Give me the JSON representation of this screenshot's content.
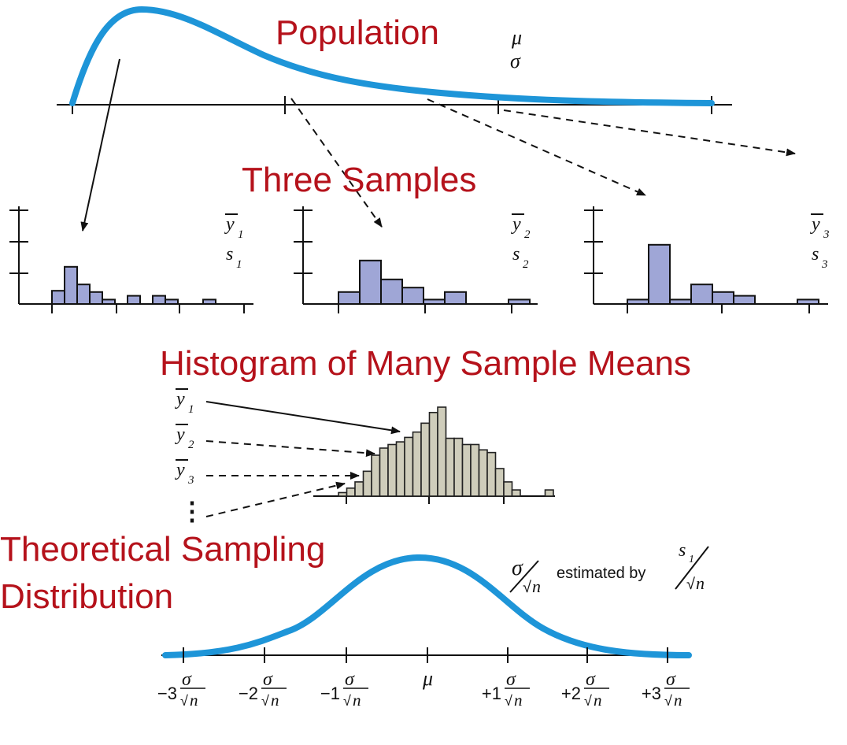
{
  "titles": {
    "population": "Population",
    "samples": "Three Samples",
    "histogram": "Histogram of Many Sample Means",
    "theoretical_line1": "Theoretical Sampling",
    "theoretical_line2": "Distribution"
  },
  "population_params": {
    "mu": "μ",
    "sigma": "σ"
  },
  "samples": [
    {
      "mean_symbol": "y",
      "sd_symbol": "s",
      "index": "1",
      "bars": [
        0.42,
        1.18,
        0.62,
        0.38,
        0.14,
        0.0,
        0.26,
        0.0,
        0.26,
        0.14,
        0.0,
        0.0,
        0.14
      ]
    },
    {
      "mean_symbol": "y",
      "sd_symbol": "s",
      "index": "2",
      "bars": [
        0.38,
        1.38,
        0.78,
        0.52,
        0.14,
        0.38,
        0.0,
        0.0,
        0.14
      ]
    },
    {
      "mean_symbol": "y",
      "sd_symbol": "s",
      "index": "3",
      "bars": [
        0.14,
        1.88,
        0.14,
        0.62,
        0.38,
        0.26,
        0.0,
        0.0,
        0.14
      ]
    }
  ],
  "means_list": [
    {
      "symbol": "y",
      "index": "1"
    },
    {
      "symbol": "y",
      "index": "2"
    },
    {
      "symbol": "y",
      "index": "3"
    }
  ],
  "means_histogram": [
    0.04,
    0.09,
    0.16,
    0.28,
    0.46,
    0.54,
    0.58,
    0.61,
    0.66,
    0.72,
    0.82,
    0.94,
    1.0,
    0.65,
    0.65,
    0.58,
    0.58,
    0.52,
    0.49,
    0.31,
    0.16,
    0.07,
    0.0,
    0.0,
    0.0,
    0.07
  ],
  "ellipsis": "⋮",
  "estimate_label": {
    "numerator": "σ",
    "denominator": "n",
    "text": "estimated by",
    "s_symbol": "s",
    "s_index": "1"
  },
  "axis_ticks": [
    {
      "coef": "−3",
      "symbol": "σ",
      "denom": "n"
    },
    {
      "coef": "−2",
      "symbol": "σ",
      "denom": "n"
    },
    {
      "coef": "−1",
      "symbol": "σ",
      "denom": "n"
    },
    {
      "coef": "",
      "symbol": "μ",
      "denom": ""
    },
    {
      "coef": "+1",
      "symbol": "σ",
      "denom": "n"
    },
    {
      "coef": "+2",
      "symbol": "σ",
      "denom": "n"
    },
    {
      "coef": "+3",
      "symbol": "σ",
      "denom": "n"
    }
  ],
  "colors": {
    "title": "#b5121b",
    "curve": "#1e95d8",
    "sample_bar": "#9fa6d6",
    "mean_bar": "#cfcdbb"
  }
}
